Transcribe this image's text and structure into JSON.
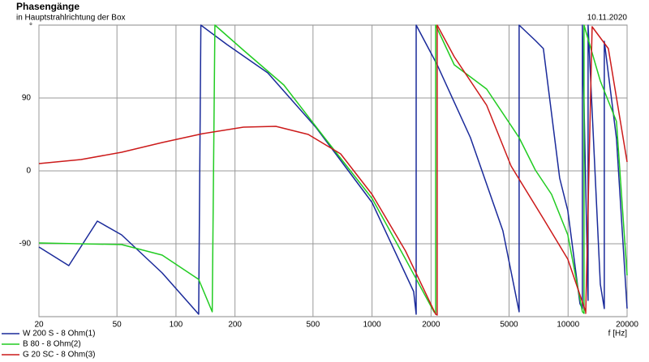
{
  "chart_data": {
    "type": "line",
    "title": "Phasengänge",
    "subtitle": "in Hauptstrahlrichtung der Box",
    "date": "10.11.2020",
    "ylabel": "°",
    "xlabel": "f [Hz]",
    "log_x": true,
    "grid": true,
    "legend": "bottom-left",
    "xlim": [
      20,
      20000
    ],
    "ylim": [
      -180,
      180
    ],
    "xticks": [
      20,
      50,
      100,
      200,
      500,
      1000,
      2000,
      5000,
      10000,
      20000
    ],
    "yticks": [
      -90,
      0,
      90
    ],
    "series": [
      {
        "name": "W 200 S - 8 Ohm(1)",
        "color": "#1a2a9a",
        "x": [
          20,
          28.4,
          39.7,
          52.8,
          85,
          130.6,
          134,
          182,
          294,
          520,
          1000,
          1630,
          1679,
          1679,
          2150,
          3178,
          4652,
          5627,
          5627,
          6809,
          7484,
          9060,
          9970,
          11500,
          11830,
          11830,
          12650,
          12650,
          14600,
          15300,
          15300,
          17660,
          20000
        ],
        "values": [
          -94,
          -117,
          -62,
          -79,
          -126,
          -177,
          180,
          156,
          121,
          53,
          -39,
          -149,
          -177,
          180,
          131,
          41,
          -74,
          -174,
          180,
          161,
          151,
          -9,
          -49,
          -164,
          -170,
          180,
          -160,
          180,
          -140,
          -170,
          160,
          40,
          -170
        ]
      },
      {
        "name": "B 80 - 8 Ohm(2)",
        "color": "#22cc22",
        "x": [
          20,
          52.8,
          85,
          130.6,
          153,
          158,
          221,
          355,
          572,
          1000,
          1483,
          2070,
          2110,
          2110,
          2625,
          3844,
          5627,
          6809,
          8240,
          9970,
          11830,
          12060,
          12060,
          14600,
          17660,
          20000
        ],
        "values": [
          -89,
          -91,
          -104,
          -134,
          -174,
          180,
          149,
          106,
          41,
          -34,
          -109,
          -174,
          -176,
          180,
          131,
          101,
          41,
          1,
          -29,
          -79,
          -174,
          -176,
          180,
          111,
          61,
          -129
        ]
      },
      {
        "name": "G 20 SC - 8 Ohm(3)",
        "color": "#cc1a1a",
        "x": [
          20,
          32.8,
          52.8,
          85,
          137,
          221,
          323,
          473,
          692,
          1000,
          1483,
          2110,
          2150,
          2150,
          2625,
          3844,
          5118,
          7484,
          9970,
          12300,
          12300,
          13270,
          16050,
          20000
        ],
        "values": [
          9,
          14,
          23,
          35,
          46,
          54,
          55,
          45,
          21,
          -29,
          -99,
          -177,
          -178,
          180,
          141,
          81,
          6,
          -59,
          -109,
          -174,
          -176,
          178,
          151,
          11
        ]
      }
    ]
  }
}
